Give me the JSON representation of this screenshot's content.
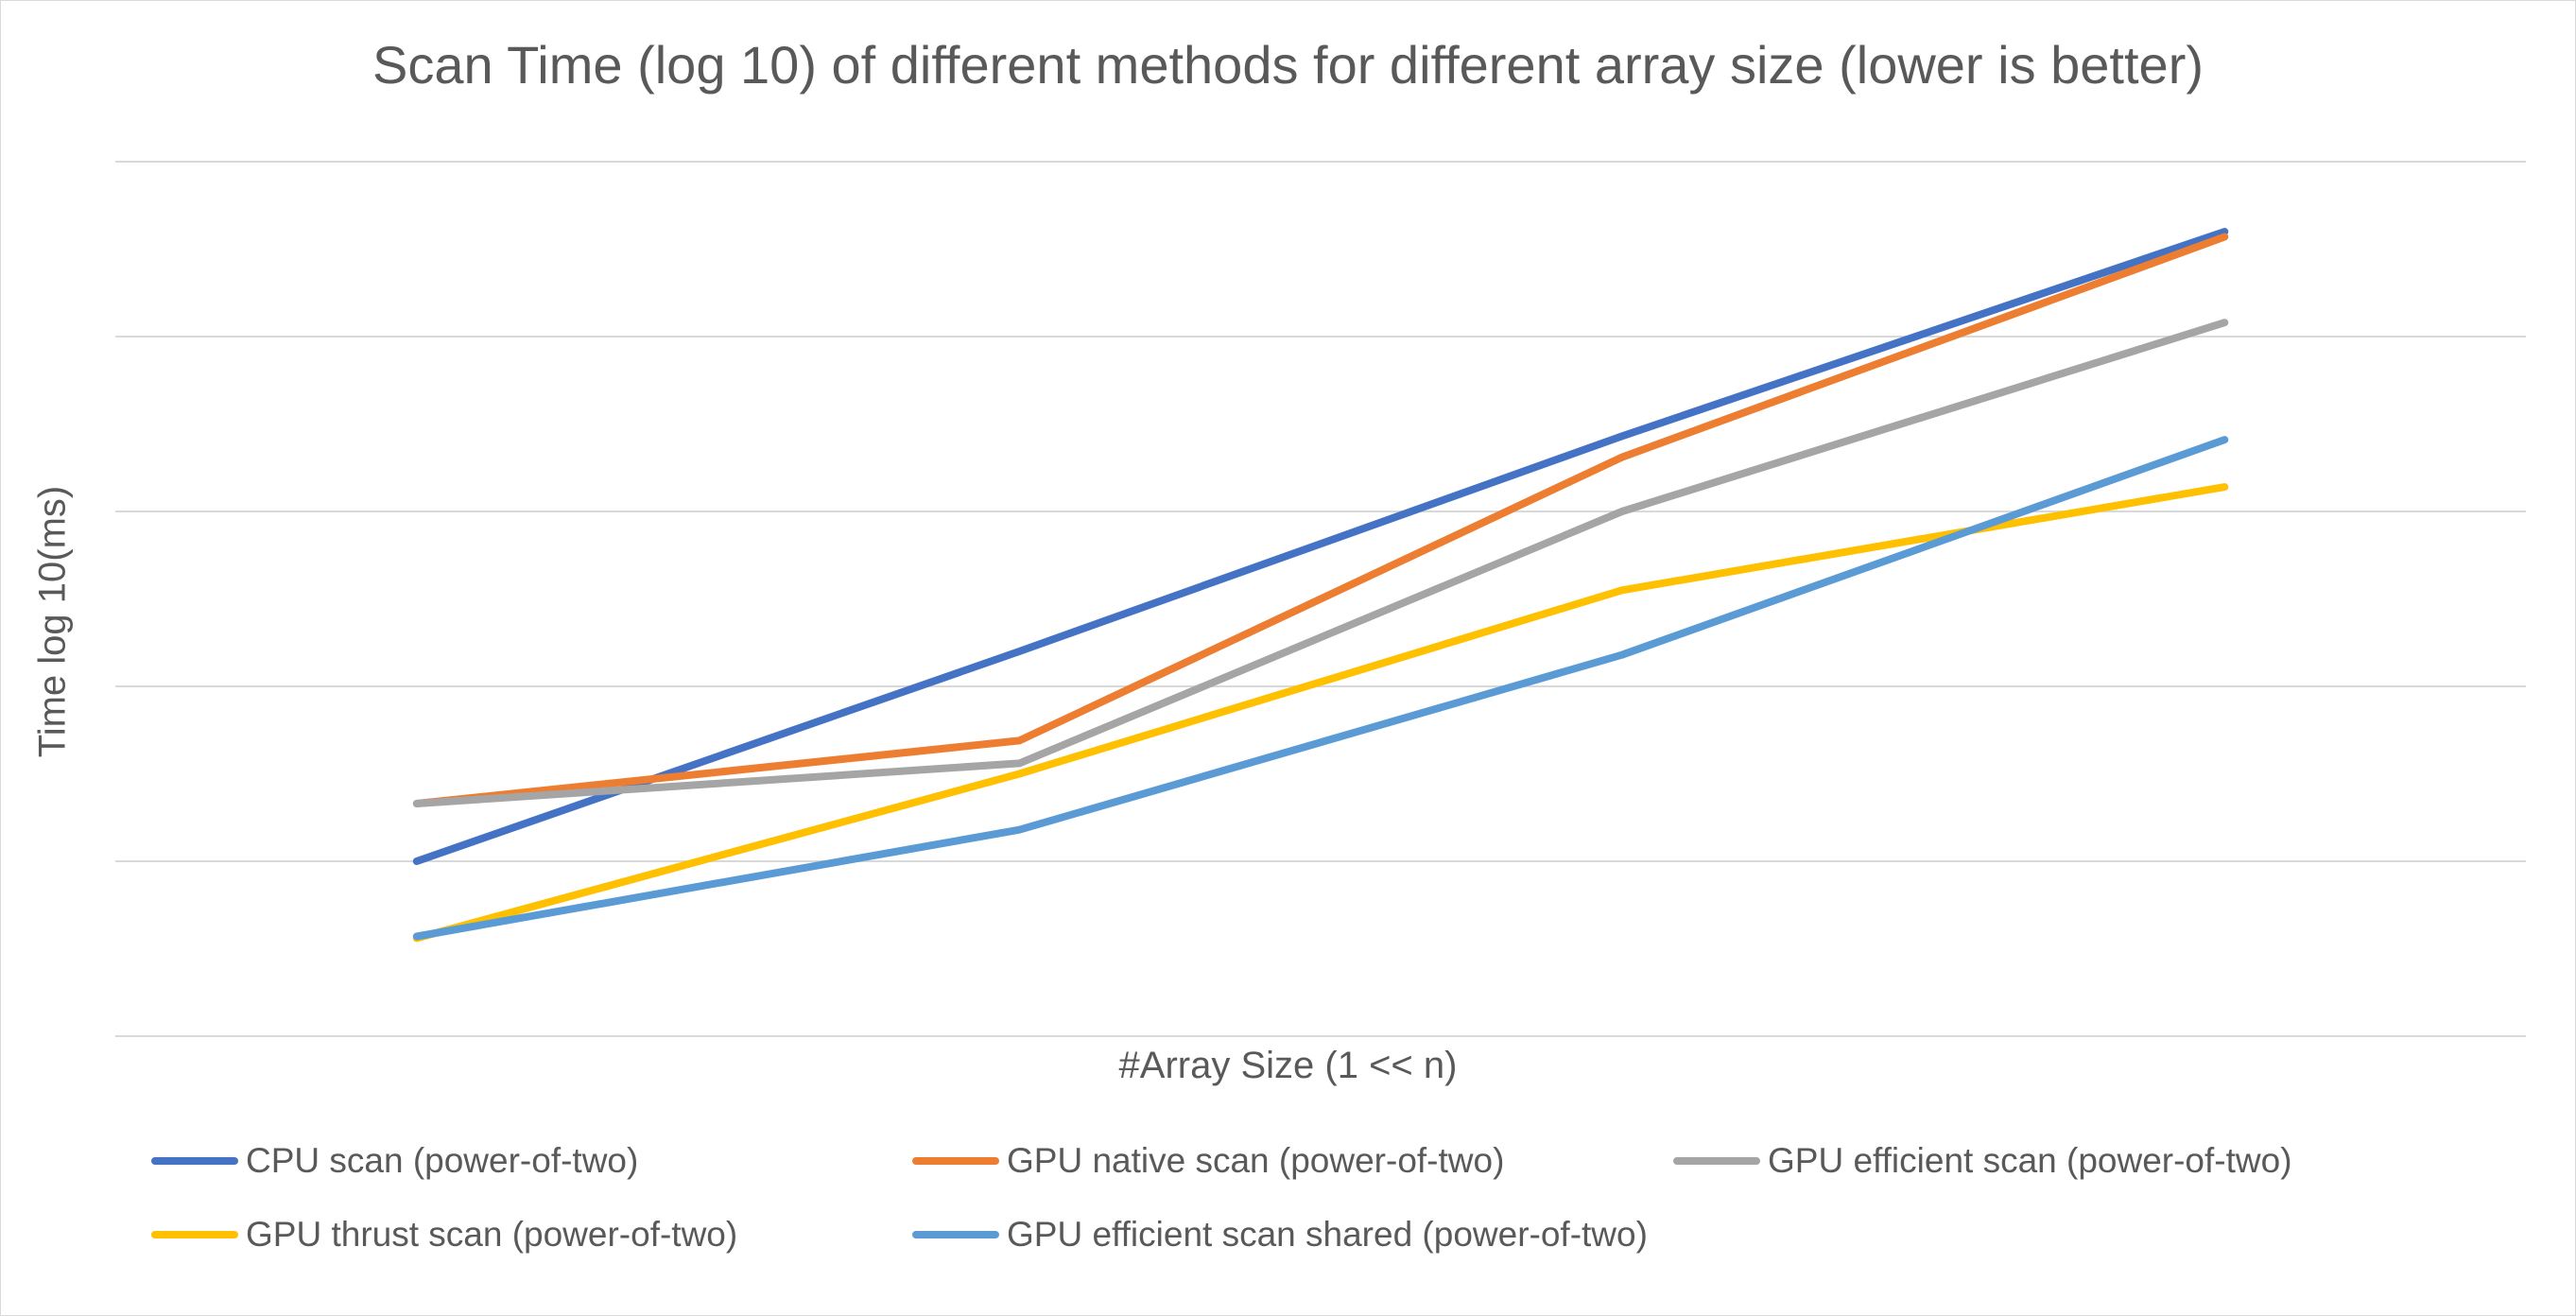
{
  "chart_data": {
    "type": "line",
    "title": "Scan Time (log 10) of different methods for different array size (lower is better)",
    "xlabel": "#Array Size (1 << n)",
    "ylabel": "Time log 10(ms)",
    "categories": [
      "",
      "",
      "",
      ""
    ],
    "ylim": [
      0,
      5
    ],
    "grid": true,
    "legend_position": "bottom",
    "series": [
      {
        "name": "CPU scan (power-of-two)",
        "color": "#4472C4",
        "values": [
          1.0,
          2.2,
          3.43,
          4.6
        ]
      },
      {
        "name": "GPU native scan (power-of-two)",
        "color": "#ED7D31",
        "values": [
          1.33,
          1.69,
          3.31,
          4.57
        ]
      },
      {
        "name": "GPU efficient scan (power-of-two)",
        "color": "#A5A5A5",
        "values": [
          1.33,
          1.56,
          3.0,
          4.08
        ]
      },
      {
        "name": "GPU thrust scan (power-of-two)",
        "color": "#FFC000",
        "values": [
          0.56,
          1.5,
          2.55,
          3.14
        ]
      },
      {
        "name": "GPU efficient scan shared (power-of-two)",
        "color": "#5B9BD5",
        "values": [
          0.57,
          1.18,
          2.18,
          3.41
        ]
      }
    ]
  }
}
